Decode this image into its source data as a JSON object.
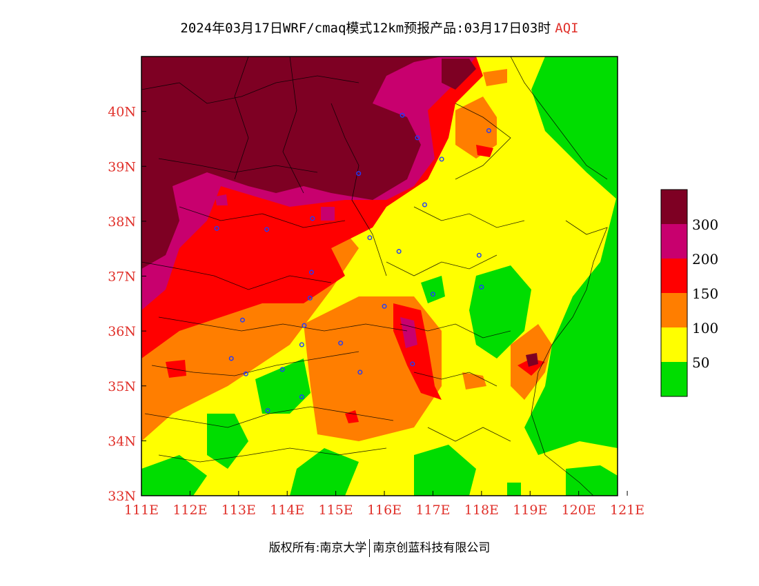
{
  "header": {
    "title": "2024年03月17日WRF/cmaq模式12km预报产品:03月17日03时",
    "product": "AQI"
  },
  "map": {
    "lon_range": [
      111,
      120.8
    ],
    "lat_range": [
      33,
      41
    ],
    "x_ticks": [
      "111E",
      "112E",
      "113E",
      "114E",
      "115E",
      "116E",
      "117E",
      "118E",
      "119E",
      "120E",
      "121E"
    ],
    "y_ticks": [
      "33N",
      "34N",
      "35N",
      "36N",
      "37N",
      "38N",
      "39N",
      "40N"
    ],
    "colors": {
      "lvl0": "#00dd00",
      "lvl1": "#ffff00",
      "lvl2": "#ff7e00",
      "lvl3": "#ff0000",
      "lvl4": "#c8006e",
      "lvl5": "#7e0023",
      "station": "#1e3cff"
    }
  },
  "legend": {
    "labels": [
      "300",
      "200",
      "150",
      "100",
      "50"
    ]
  },
  "footer": {
    "left": "版权所有:南京大学",
    "right": "南京创蓝科技有限公司"
  }
}
